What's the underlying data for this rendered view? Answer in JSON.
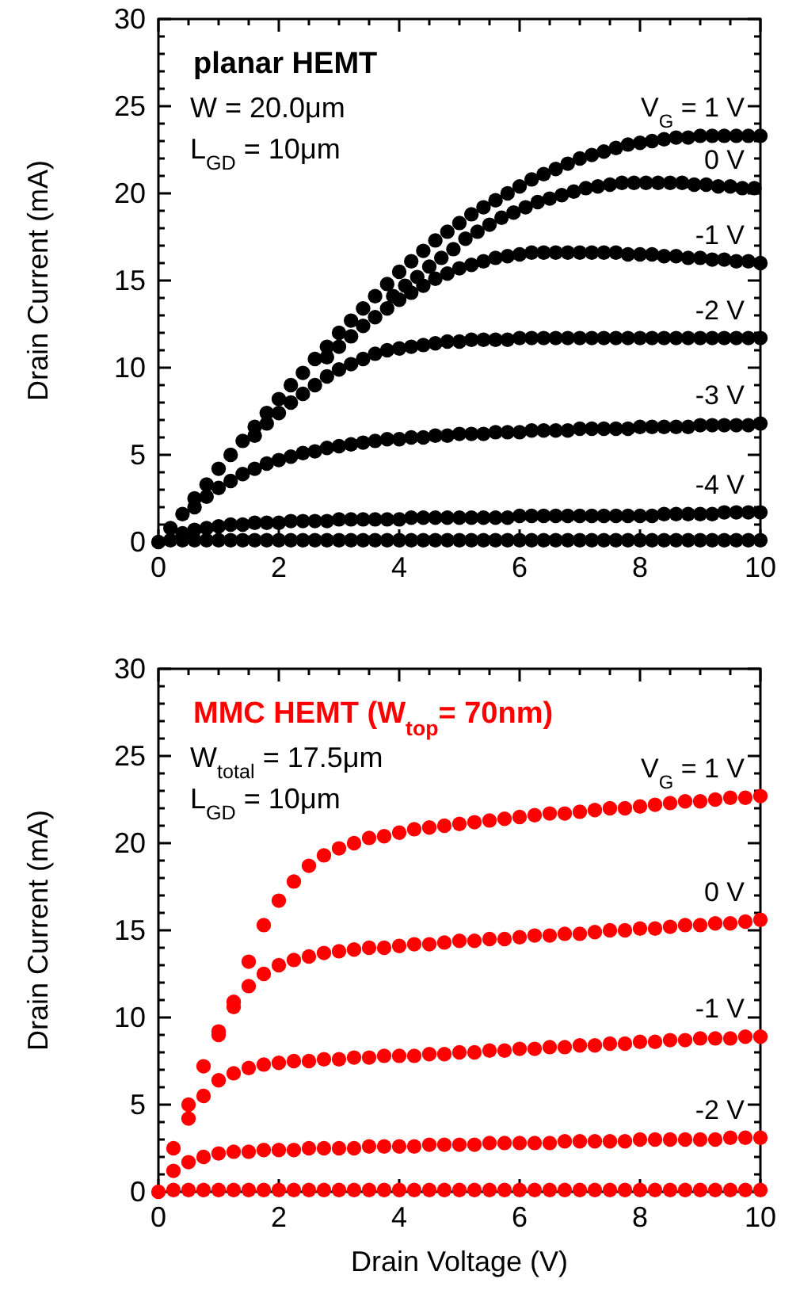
{
  "chart_data": [
    {
      "type": "scatter",
      "title": "planar HEMT",
      "ylabel": "Drain Current (mA)",
      "marker": "circle",
      "legend": "right",
      "annotations": [
        "W = 20.0μm",
        "L$_{GD}$ = 10μm"
      ],
      "x": [
        0,
        0.2,
        0.4,
        0.6,
        0.8,
        1,
        1.2,
        1.4,
        1.6,
        1.8,
        2,
        2.2,
        2.4,
        2.6,
        2.8,
        3,
        3.2,
        3.4,
        3.6,
        3.8,
        4,
        4.2,
        4.4,
        4.6,
        4.8,
        5,
        5.2,
        5.4,
        5.6,
        5.8,
        6,
        6.2,
        6.4,
        6.6,
        6.8,
        7,
        7.2,
        7.4,
        7.6,
        7.8,
        8,
        8.2,
        8.4,
        8.6,
        8.8,
        9,
        9.2,
        9.4,
        9.6,
        9.8,
        10
      ],
      "xlim": [
        0,
        10
      ],
      "ylim": [
        0,
        30
      ],
      "xticks": [
        0,
        {
          "value": 0.5,
          "label": null
        },
        2,
        {
          "value": 1,
          "label": null
        },
        {
          "value": 1.5,
          "label": null
        },
        {
          "value": 2.5,
          "label": null
        },
        {
          "value": 3,
          "label": null
        },
        {
          "value": 3.5,
          "label": null
        },
        4,
        {
          "value": 4.5,
          "label": null
        },
        {
          "value": 5,
          "label": null
        },
        {
          "value": 5.5,
          "label": null
        },
        6,
        {
          "value": 6.5,
          "label": null
        },
        {
          "value": 7,
          "label": null
        },
        {
          "value": 7.5,
          "label": null
        },
        8,
        {
          "value": 8.5,
          "label": null
        },
        {
          "value": 9,
          "label": null
        },
        {
          "value": 9.5,
          "label": null
        },
        10
      ],
      "yticks": [
        0,
        {
          "value": 1,
          "label": null
        },
        {
          "value": 2,
          "label": null
        },
        {
          "value": 3,
          "label": null
        },
        {
          "value": 4,
          "label": null
        },
        5,
        {
          "value": 6,
          "label": null
        },
        {
          "value": 7,
          "label": null
        },
        {
          "value": 8,
          "label": null
        },
        {
          "value": 9,
          "label": null
        },
        10,
        {
          "value": 11,
          "label": null
        },
        {
          "value": 12,
          "label": null
        },
        {
          "value": 13,
          "label": null
        },
        {
          "value": 14,
          "label": null
        },
        15,
        {
          "value": 16,
          "label": null
        },
        {
          "value": 17,
          "label": null
        },
        {
          "value": 18,
          "label": null
        },
        {
          "value": 19,
          "label": null
        },
        20,
        {
          "value": 21,
          "label": null
        },
        {
          "value": 22,
          "label": null
        },
        {
          "value": 23,
          "label": null
        },
        {
          "value": 24,
          "label": null
        },
        25,
        {
          "value": 26,
          "label": null
        },
        {
          "value": 27,
          "label": null
        },
        {
          "value": 28,
          "label": null
        },
        {
          "value": 29,
          "label": null
        },
        30
      ],
      "series": [
        {
          "name": "V$_{G}$ = 1 V",
          "color": "#000000",
          "values": [
            null,
            0.8,
            1.6,
            2.5,
            3.3,
            4.2,
            5,
            5.8,
            6.6,
            7.4,
            8.2,
            9,
            9.7,
            10.5,
            11.2,
            12,
            12.7,
            13.4,
            14.1,
            14.8,
            15.5,
            16.1,
            16.7,
            17.3,
            17.8,
            18.3,
            18.8,
            19.2,
            19.6,
            20,
            20.4,
            20.8,
            21.1,
            21.4,
            21.7,
            22,
            22.2,
            22.4,
            22.6,
            22.8,
            22.9,
            23,
            23.1,
            23.2,
            23.2,
            23.3,
            23.3,
            23.3,
            23.3,
            23.3,
            23.3
          ]
        },
        {
          "name": "0 V",
          "color": "#000000",
          "x": [
            3.9,
            4.1,
            4.3,
            4.5,
            4.7,
            4.9,
            5.1,
            5.3,
            5.5,
            5.7,
            5.9,
            6.1,
            6.3,
            6.5,
            6.7,
            6.9,
            7.1,
            7.3,
            7.5,
            7.7,
            7.9,
            8.1,
            8.3,
            8.5,
            8.7,
            8.9,
            9.1,
            9.3,
            9.5,
            9.7,
            9.9
          ],
          "values": [
            14.1,
            14.7,
            15.2,
            15.8,
            16.3,
            16.8,
            17.4,
            17.8,
            18.2,
            18.6,
            18.9,
            19.2,
            19.5,
            19.7,
            19.9,
            20.1,
            20.3,
            20.4,
            20.5,
            20.6,
            20.6,
            20.6,
            20.6,
            20.6,
            20.6,
            20.5,
            20.5,
            20.4,
            20.4,
            20.3,
            20.3
          ]
        },
        {
          "name": "-1 V",
          "color": "#000000",
          "values": [
            null,
            null,
            null,
            null,
            null,
            null,
            null,
            null,
            null,
            null,
            null,
            null,
            null,
            null,
            10.6,
            11.2,
            11.8,
            12.4,
            12.9,
            13.4,
            13.9,
            14.3,
            14.7,
            15.1,
            15.4,
            15.7,
            15.9,
            16.1,
            16.3,
            16.4,
            16.5,
            16.6,
            16.6,
            16.6,
            16.6,
            16.6,
            16.6,
            16.6,
            16.6,
            16.5,
            16.5,
            16.5,
            16.4,
            16.4,
            16.3,
            16.3,
            16.2,
            16.2,
            16.1,
            16.1,
            16.0
          ]
        },
        {
          "name": "-2 V",
          "color": "#000000",
          "values": [
            null,
            null,
            null,
            null,
            null,
            null,
            null,
            null,
            6.1,
            6.8,
            7.4,
            8,
            8.5,
            9,
            9.5,
            9.9,
            10.2,
            10.5,
            10.8,
            11,
            11.1,
            11.2,
            11.3,
            11.4,
            11.5,
            11.5,
            11.6,
            11.6,
            11.6,
            11.6,
            11.7,
            11.7,
            11.7,
            11.7,
            11.7,
            11.7,
            11.7,
            11.7,
            11.7,
            11.7,
            11.7,
            11.7,
            11.7,
            11.7,
            11.7,
            11.7,
            11.7,
            11.7,
            11.7,
            11.7,
            11.7
          ]
        },
        {
          "name": "-3 V",
          "color": "#000000",
          "values": [
            null,
            null,
            null,
            2.0,
            2.6,
            3.1,
            3.5,
            3.9,
            4.2,
            4.5,
            4.7,
            4.9,
            5.1,
            5.2,
            5.4,
            5.5,
            5.6,
            5.7,
            5.8,
            5.9,
            5.9,
            6.0,
            6.0,
            6.1,
            6.1,
            6.2,
            6.2,
            6.2,
            6.3,
            6.3,
            6.3,
            6.4,
            6.4,
            6.4,
            6.4,
            6.5,
            6.5,
            6.5,
            6.5,
            6.5,
            6.6,
            6.6,
            6.6,
            6.6,
            6.6,
            6.7,
            6.7,
            6.7,
            6.7,
            6.7,
            6.8
          ]
        },
        {
          "name": "-4 V",
          "color": "#000000",
          "values": [
            null,
            null,
            0.5,
            0.7,
            0.8,
            0.9,
            1.0,
            1.0,
            1.1,
            1.1,
            1.1,
            1.2,
            1.2,
            1.2,
            1.2,
            1.3,
            1.3,
            1.3,
            1.3,
            1.3,
            1.3,
            1.4,
            1.4,
            1.4,
            1.4,
            1.4,
            1.4,
            1.4,
            1.4,
            1.4,
            1.5,
            1.5,
            1.5,
            1.5,
            1.5,
            1.5,
            1.5,
            1.5,
            1.5,
            1.5,
            1.5,
            1.5,
            1.6,
            1.6,
            1.6,
            1.6,
            1.6,
            1.7,
            1.7,
            1.7,
            1.7
          ]
        },
        {
          "color": "#000000",
          "values": [
            0,
            0.1,
            0.1,
            0.1,
            0.1,
            0.1,
            0.1,
            0.1,
            0.1,
            0.1,
            0.1,
            0.1,
            0.1,
            0.1,
            0.1,
            0.1,
            0.1,
            0.1,
            0.1,
            0.1,
            0.1,
            0.1,
            0.1,
            0.1,
            0.1,
            0.1,
            0.1,
            0.1,
            0.1,
            0.1,
            0.1,
            0.1,
            0.1,
            0.1,
            0.1,
            0.1,
            0.1,
            0.1,
            0.1,
            0.1,
            0.1,
            0.1,
            0.1,
            0.1,
            0.1,
            0.1,
            0.1,
            0.1,
            0.1,
            0.1,
            0.1
          ]
        }
      ]
    },
    {
      "type": "scatter",
      "title": "MMC HEMT (W$_{top}$= 70nm)",
      "xlabel": "Drain Voltage (V)",
      "ylabel": "Drain Current (mA)",
      "marker": "circle",
      "legend": "right",
      "annotations": [
        "W$_{total}$ = 17.5μm",
        "L$_{GD}$ = 10μm"
      ],
      "x": [
        0,
        0.25,
        0.5,
        0.75,
        1,
        1.25,
        1.5,
        1.75,
        2,
        2.25,
        2.5,
        2.75,
        3,
        3.25,
        3.5,
        3.75,
        4,
        4.25,
        4.5,
        4.75,
        5,
        5.25,
        5.5,
        5.75,
        6,
        6.25,
        6.5,
        6.75,
        7,
        7.25,
        7.5,
        7.75,
        8,
        8.25,
        8.5,
        8.75,
        9,
        9.25,
        9.5,
        9.75,
        10
      ],
      "xlim": [
        0,
        10
      ],
      "ylim": [
        0,
        30
      ],
      "xticks": [
        0,
        {
          "value": 0.5,
          "label": null
        },
        2,
        {
          "value": 1,
          "label": null
        },
        {
          "value": 1.5,
          "label": null
        },
        {
          "value": 2.5,
          "label": null
        },
        {
          "value": 3,
          "label": null
        },
        {
          "value": 3.5,
          "label": null
        },
        4,
        {
          "value": 4.5,
          "label": null
        },
        {
          "value": 5,
          "label": null
        },
        {
          "value": 5.5,
          "label": null
        },
        6,
        {
          "value": 6.5,
          "label": null
        },
        {
          "value": 7,
          "label": null
        },
        {
          "value": 7.5,
          "label": null
        },
        8,
        {
          "value": 8.5,
          "label": null
        },
        {
          "value": 9,
          "label": null
        },
        {
          "value": 9.5,
          "label": null
        },
        10
      ],
      "yticks": [
        0,
        {
          "value": 1,
          "label": null
        },
        {
          "value": 2,
          "label": null
        },
        {
          "value": 3,
          "label": null
        },
        {
          "value": 4,
          "label": null
        },
        5,
        {
          "value": 6,
          "label": null
        },
        {
          "value": 7,
          "label": null
        },
        {
          "value": 8,
          "label": null
        },
        {
          "value": 9,
          "label": null
        },
        10,
        {
          "value": 11,
          "label": null
        },
        {
          "value": 12,
          "label": null
        },
        {
          "value": 13,
          "label": null
        },
        {
          "value": 14,
          "label": null
        },
        15,
        {
          "value": 16,
          "label": null
        },
        {
          "value": 17,
          "label": null
        },
        {
          "value": 18,
          "label": null
        },
        {
          "value": 19,
          "label": null
        },
        20,
        {
          "value": 21,
          "label": null
        },
        {
          "value": 22,
          "label": null
        },
        {
          "value": 23,
          "label": null
        },
        {
          "value": 24,
          "label": null
        },
        25,
        {
          "value": 26,
          "label": null
        },
        {
          "value": 27,
          "label": null
        },
        {
          "value": 28,
          "label": null
        },
        {
          "value": 29,
          "label": null
        },
        30
      ],
      "series": [
        {
          "name": "V$_{G}$ = 1 V",
          "color": "#ff0000",
          "values": [
            null,
            2.5,
            5,
            7.2,
            9.2,
            10.9,
            13.2,
            15.3,
            16.7,
            17.8,
            18.7,
            19.3,
            19.7,
            20,
            20.3,
            20.4,
            20.6,
            20.8,
            20.9,
            21,
            21.1,
            21.2,
            21.3,
            21.4,
            21.5,
            21.6,
            21.7,
            21.7,
            21.8,
            21.9,
            22,
            22,
            22.1,
            22.2,
            22.3,
            22.4,
            22.4,
            22.5,
            22.6,
            22.6,
            22.7
          ]
        },
        {
          "name": "0 V",
          "color": "#ff0000",
          "values": [
            null,
            null,
            null,
            null,
            9,
            10.6,
            11.8,
            12.5,
            13,
            13.3,
            13.5,
            13.7,
            13.8,
            13.9,
            14,
            14,
            14.1,
            14.2,
            14.2,
            14.3,
            14.4,
            14.4,
            14.5,
            14.5,
            14.6,
            14.7,
            14.7,
            14.8,
            14.8,
            14.9,
            15,
            15,
            15.1,
            15.1,
            15.2,
            15.3,
            15.3,
            15.4,
            15.4,
            15.5,
            15.6
          ]
        },
        {
          "name": "-1 V",
          "color": "#ff0000",
          "values": [
            null,
            null,
            4.2,
            5.5,
            6.4,
            6.8,
            7.1,
            7.3,
            7.4,
            7.5,
            7.5,
            7.6,
            7.6,
            7.7,
            7.7,
            7.8,
            7.8,
            7.8,
            7.9,
            7.9,
            8,
            8,
            8.1,
            8.1,
            8.2,
            8.2,
            8.3,
            8.3,
            8.4,
            8.4,
            8.5,
            8.5,
            8.6,
            8.6,
            8.7,
            8.7,
            8.8,
            8.8,
            8.8,
            8.9,
            8.9
          ]
        },
        {
          "name": "-2 V",
          "color": "#ff0000",
          "values": [
            null,
            1.2,
            1.7,
            2,
            2.2,
            2.3,
            2.3,
            2.4,
            2.4,
            2.4,
            2.5,
            2.5,
            2.5,
            2.5,
            2.6,
            2.6,
            2.6,
            2.6,
            2.7,
            2.7,
            2.7,
            2.7,
            2.8,
            2.8,
            2.8,
            2.8,
            2.8,
            2.9,
            2.9,
            2.9,
            2.9,
            2.9,
            3,
            3,
            3,
            3,
            3,
            3,
            3.1,
            3.1,
            3.1
          ]
        },
        {
          "color": "#ff0000",
          "values": [
            0,
            0.1,
            0.1,
            0.1,
            0.1,
            0.1,
            0.1,
            0.1,
            0.1,
            0.1,
            0.1,
            0.1,
            0.1,
            0.1,
            0.1,
            0.1,
            0.1,
            0.1,
            0.1,
            0.1,
            0.1,
            0.1,
            0.1,
            0.1,
            0.1,
            0.1,
            0.1,
            0.1,
            0.1,
            0.1,
            0.1,
            0.1,
            0.1,
            0.1,
            0.1,
            0.1,
            0.1,
            0.1,
            0.1,
            0.1,
            0.1
          ]
        }
      ]
    }
  ]
}
